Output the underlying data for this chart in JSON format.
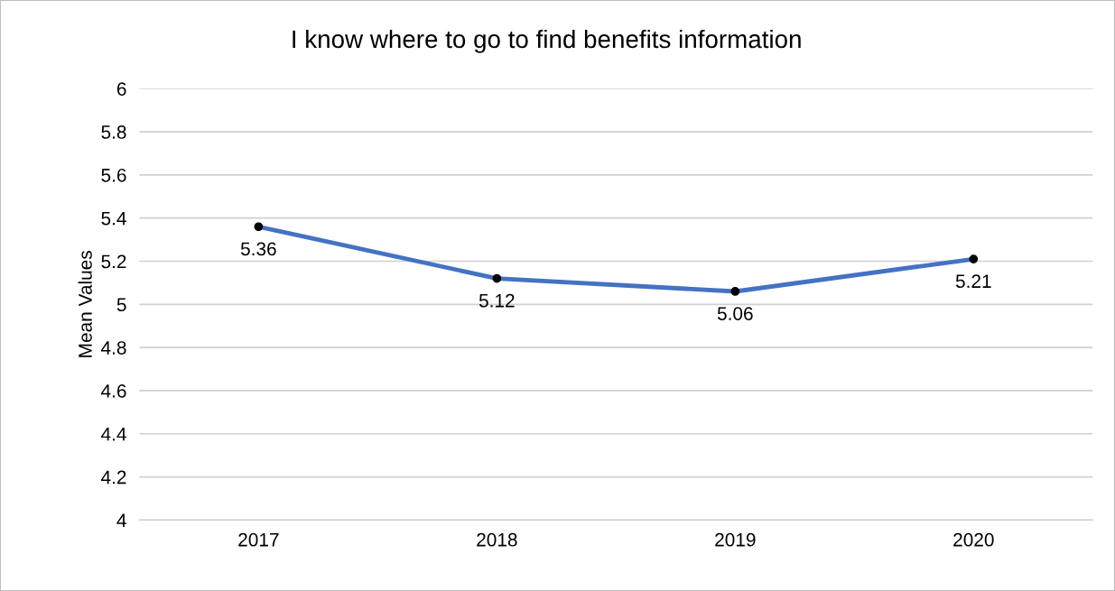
{
  "chart_data": {
    "type": "line",
    "title": "I know where to go to find benefits information",
    "ylabel": "Mean Values",
    "categories": [
      "2017",
      "2018",
      "2019",
      "2020"
    ],
    "series": [
      {
        "color": "#4472c4",
        "values": [
          5.36,
          5.12,
          5.06,
          5.21
        ]
      }
    ],
    "ylim": [
      4,
      6
    ],
    "yticks": [
      4,
      4.2,
      4.4,
      4.6,
      4.8,
      5,
      5.2,
      5.4,
      5.6,
      5.8,
      6
    ],
    "grid": "y",
    "marker": "circle",
    "data_labels": true,
    "legend": false
  }
}
